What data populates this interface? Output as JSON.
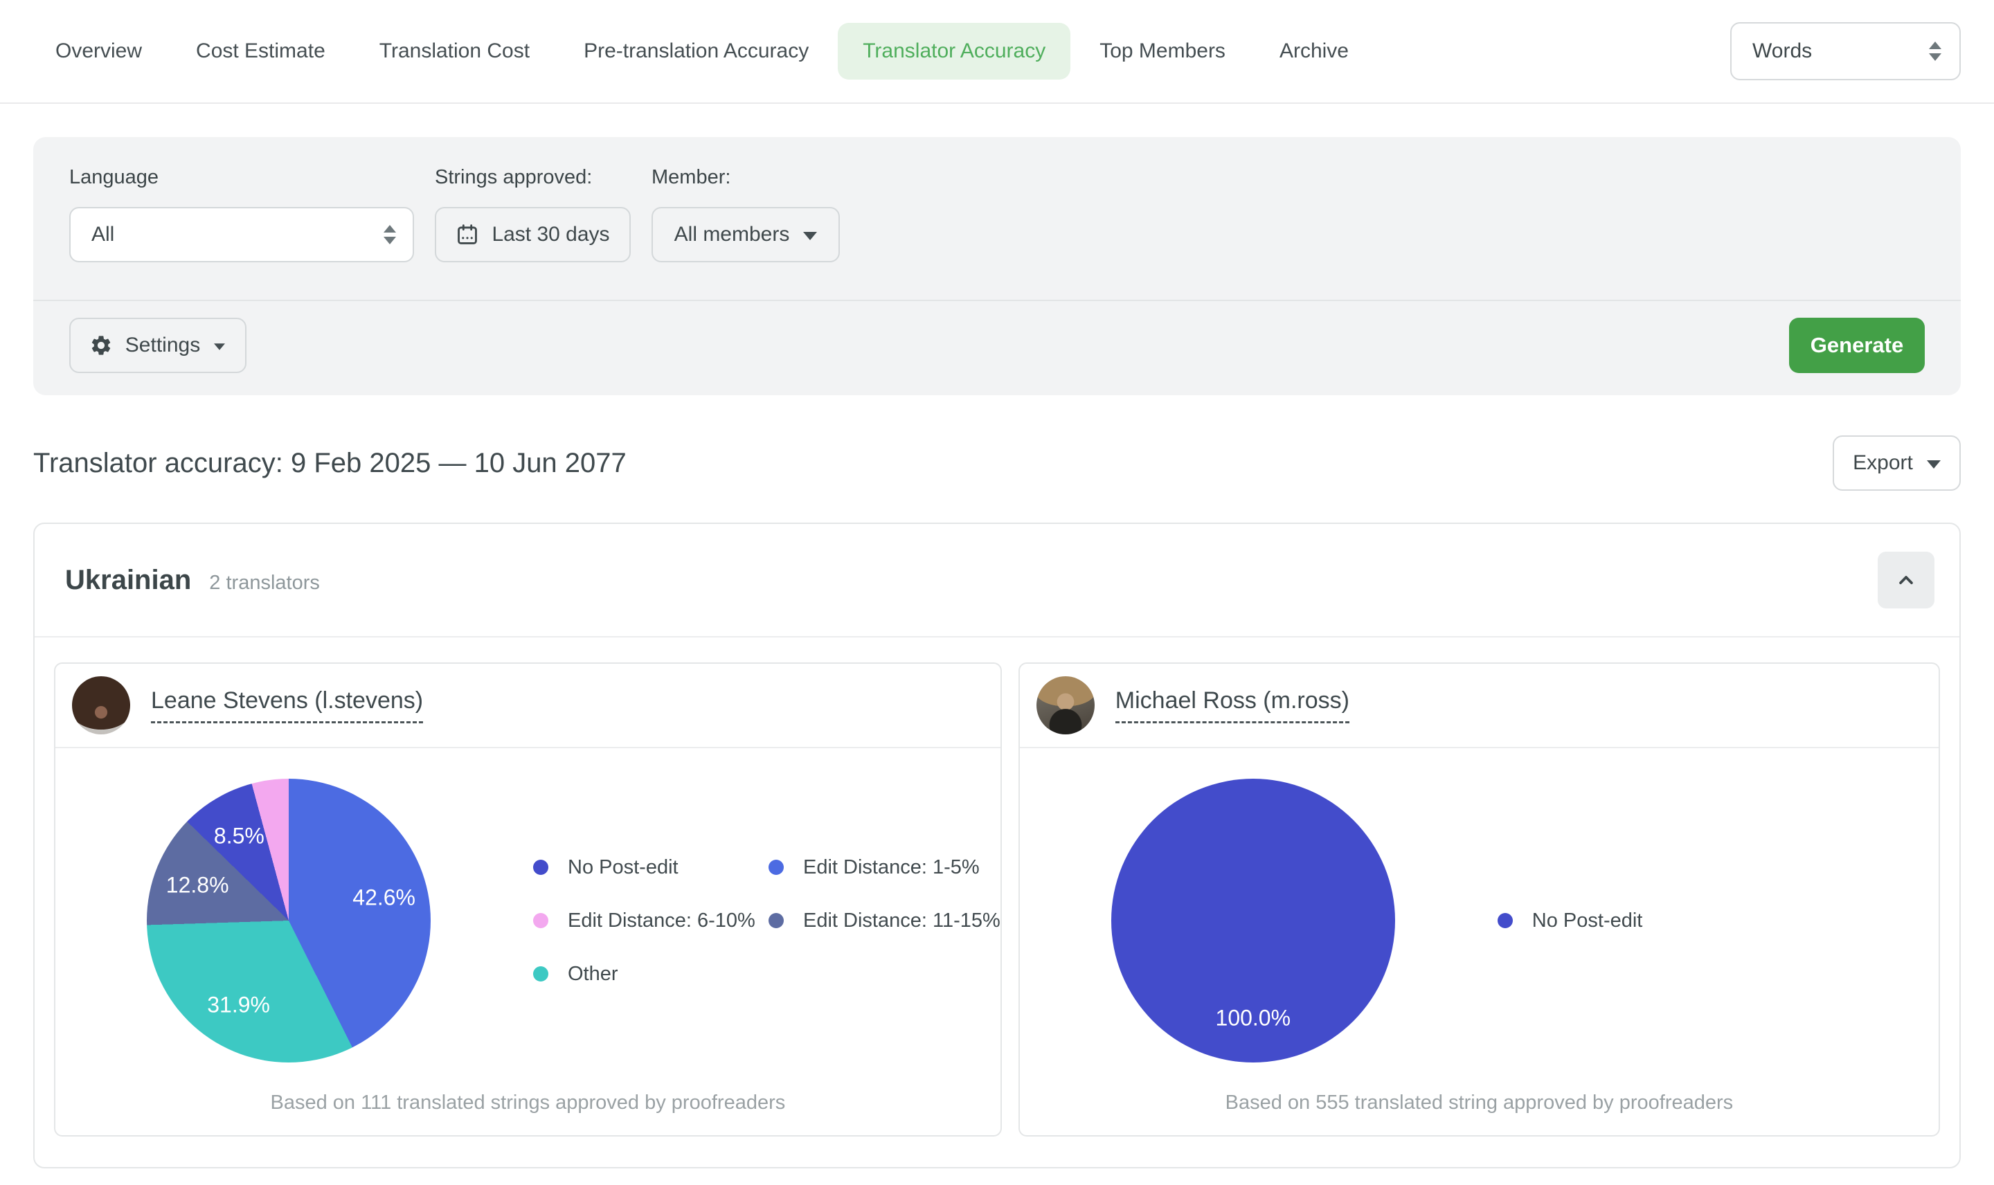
{
  "nav": {
    "tabs": [
      {
        "label": "Overview",
        "active": false
      },
      {
        "label": "Cost Estimate",
        "active": false
      },
      {
        "label": "Translation Cost",
        "active": false
      },
      {
        "label": "Pre-translation Accuracy",
        "active": false
      },
      {
        "label": "Translator Accuracy",
        "active": true
      },
      {
        "label": "Top Members",
        "active": false
      },
      {
        "label": "Archive",
        "active": false
      }
    ],
    "unit_select": {
      "value": "Words"
    }
  },
  "filters": {
    "language": {
      "label": "Language",
      "value": "All"
    },
    "strings_approved": {
      "label": "Strings approved:",
      "value": "Last 30 days"
    },
    "member": {
      "label": "Member:",
      "value": "All members"
    },
    "settings_label": "Settings",
    "generate_label": "Generate"
  },
  "report": {
    "title": "Translator accuracy: 9 Feb 2025 — 10 Jun 2077",
    "export_label": "Export"
  },
  "language_section": {
    "name": "Ukrainian",
    "translators_count": "2 translators"
  },
  "translators": [
    {
      "name": "Leane Stevens (l.stevens)",
      "caption": "Based on 111 translated strings approved by proofreaders"
    },
    {
      "name": "Michael Ross (m.ross)",
      "caption": "Based on 555 translated string approved by proofreaders"
    }
  ],
  "colors": {
    "accent_green": "#43A047",
    "active_tab_bg": "#E6F3E6",
    "active_tab_text": "#4FAE5C",
    "no_post_edit": "#434CCB",
    "edit_distance_1_5": "#4C6BE2",
    "edit_distance_6_10": "#F3A8EF",
    "edit_distance_11_15": "#5D6CA2",
    "other": "#3DC9C3"
  },
  "chart_data": [
    {
      "type": "pie",
      "owner": "Leane Stevens (l.stevens)",
      "start_angle": "top",
      "direction": "clockwise",
      "slices": [
        {
          "label": "Edit Distance: 1-5%",
          "value": 42.6,
          "color": "#4C6BE2",
          "data_label": "42.6%"
        },
        {
          "label": "Other",
          "value": 31.9,
          "color": "#3DC9C3",
          "data_label": "31.9%"
        },
        {
          "label": "Edit Distance: 11-15%",
          "value": 12.8,
          "color": "#5D6CA2",
          "data_label": "12.8%"
        },
        {
          "label": "No Post-edit",
          "value": 8.5,
          "color": "#434CCB",
          "data_label": "8.5%"
        },
        {
          "label": "Edit Distance: 6-10%",
          "value": 4.2,
          "color": "#F3A8EF",
          "data_label": ""
        }
      ],
      "legend": [
        "No Post-edit",
        "Edit Distance: 1-5%",
        "Edit Distance: 6-10%",
        "Edit Distance: 11-15%",
        "Other"
      ],
      "legend_position": "right"
    },
    {
      "type": "pie",
      "owner": "Michael Ross (m.ross)",
      "start_angle": "top",
      "direction": "clockwise",
      "slices": [
        {
          "label": "No Post-edit",
          "value": 100.0,
          "color": "#434CCB",
          "data_label": "100.0%"
        }
      ],
      "legend": [
        "No Post-edit"
      ],
      "legend_position": "right"
    }
  ]
}
